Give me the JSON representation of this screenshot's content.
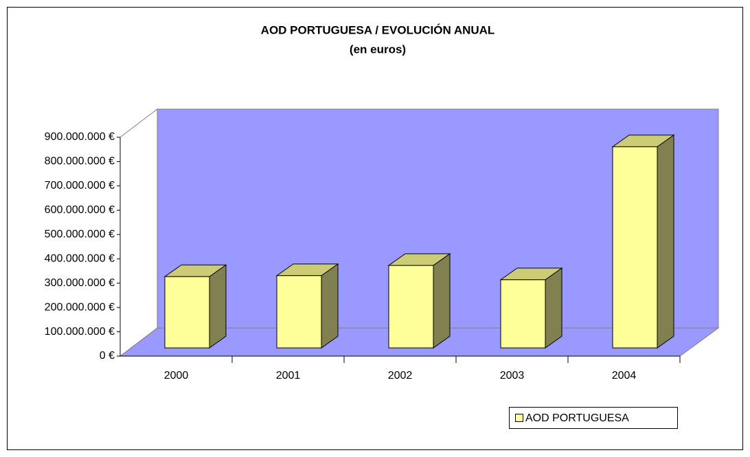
{
  "chart_data": {
    "type": "bar3d",
    "title": "AOD PORTUGUESA / EVOLUCIÓN ANUAL",
    "subtitle": "(en euros)",
    "categories": [
      "2000",
      "2001",
      "2002",
      "2003",
      "2004"
    ],
    "series": [
      {
        "name": "AOD PORTUGUESA",
        "color": "#ffff99",
        "values": [
          293000000,
          297000000,
          339000000,
          280000000,
          827000000
        ]
      }
    ],
    "ylim": [
      0,
      900000000
    ],
    "yticks": [
      {
        "value": 0,
        "label": "0 €"
      },
      {
        "value": 100000000,
        "label": "100.000.000 €"
      },
      {
        "value": 200000000,
        "label": "200.000.000 €"
      },
      {
        "value": 300000000,
        "label": "300.000.000 €"
      },
      {
        "value": 400000000,
        "label": "400.000.000 €"
      },
      {
        "value": 500000000,
        "label": "500.000.000 €"
      },
      {
        "value": 600000000,
        "label": "600.000.000 €"
      },
      {
        "value": 700000000,
        "label": "700.000.000 €"
      },
      {
        "value": 800000000,
        "label": "800.000.000 €"
      },
      {
        "value": 900000000,
        "label": "900.000.000 €"
      }
    ],
    "wall_color": "#9999ff",
    "legend": "bottom-right"
  }
}
